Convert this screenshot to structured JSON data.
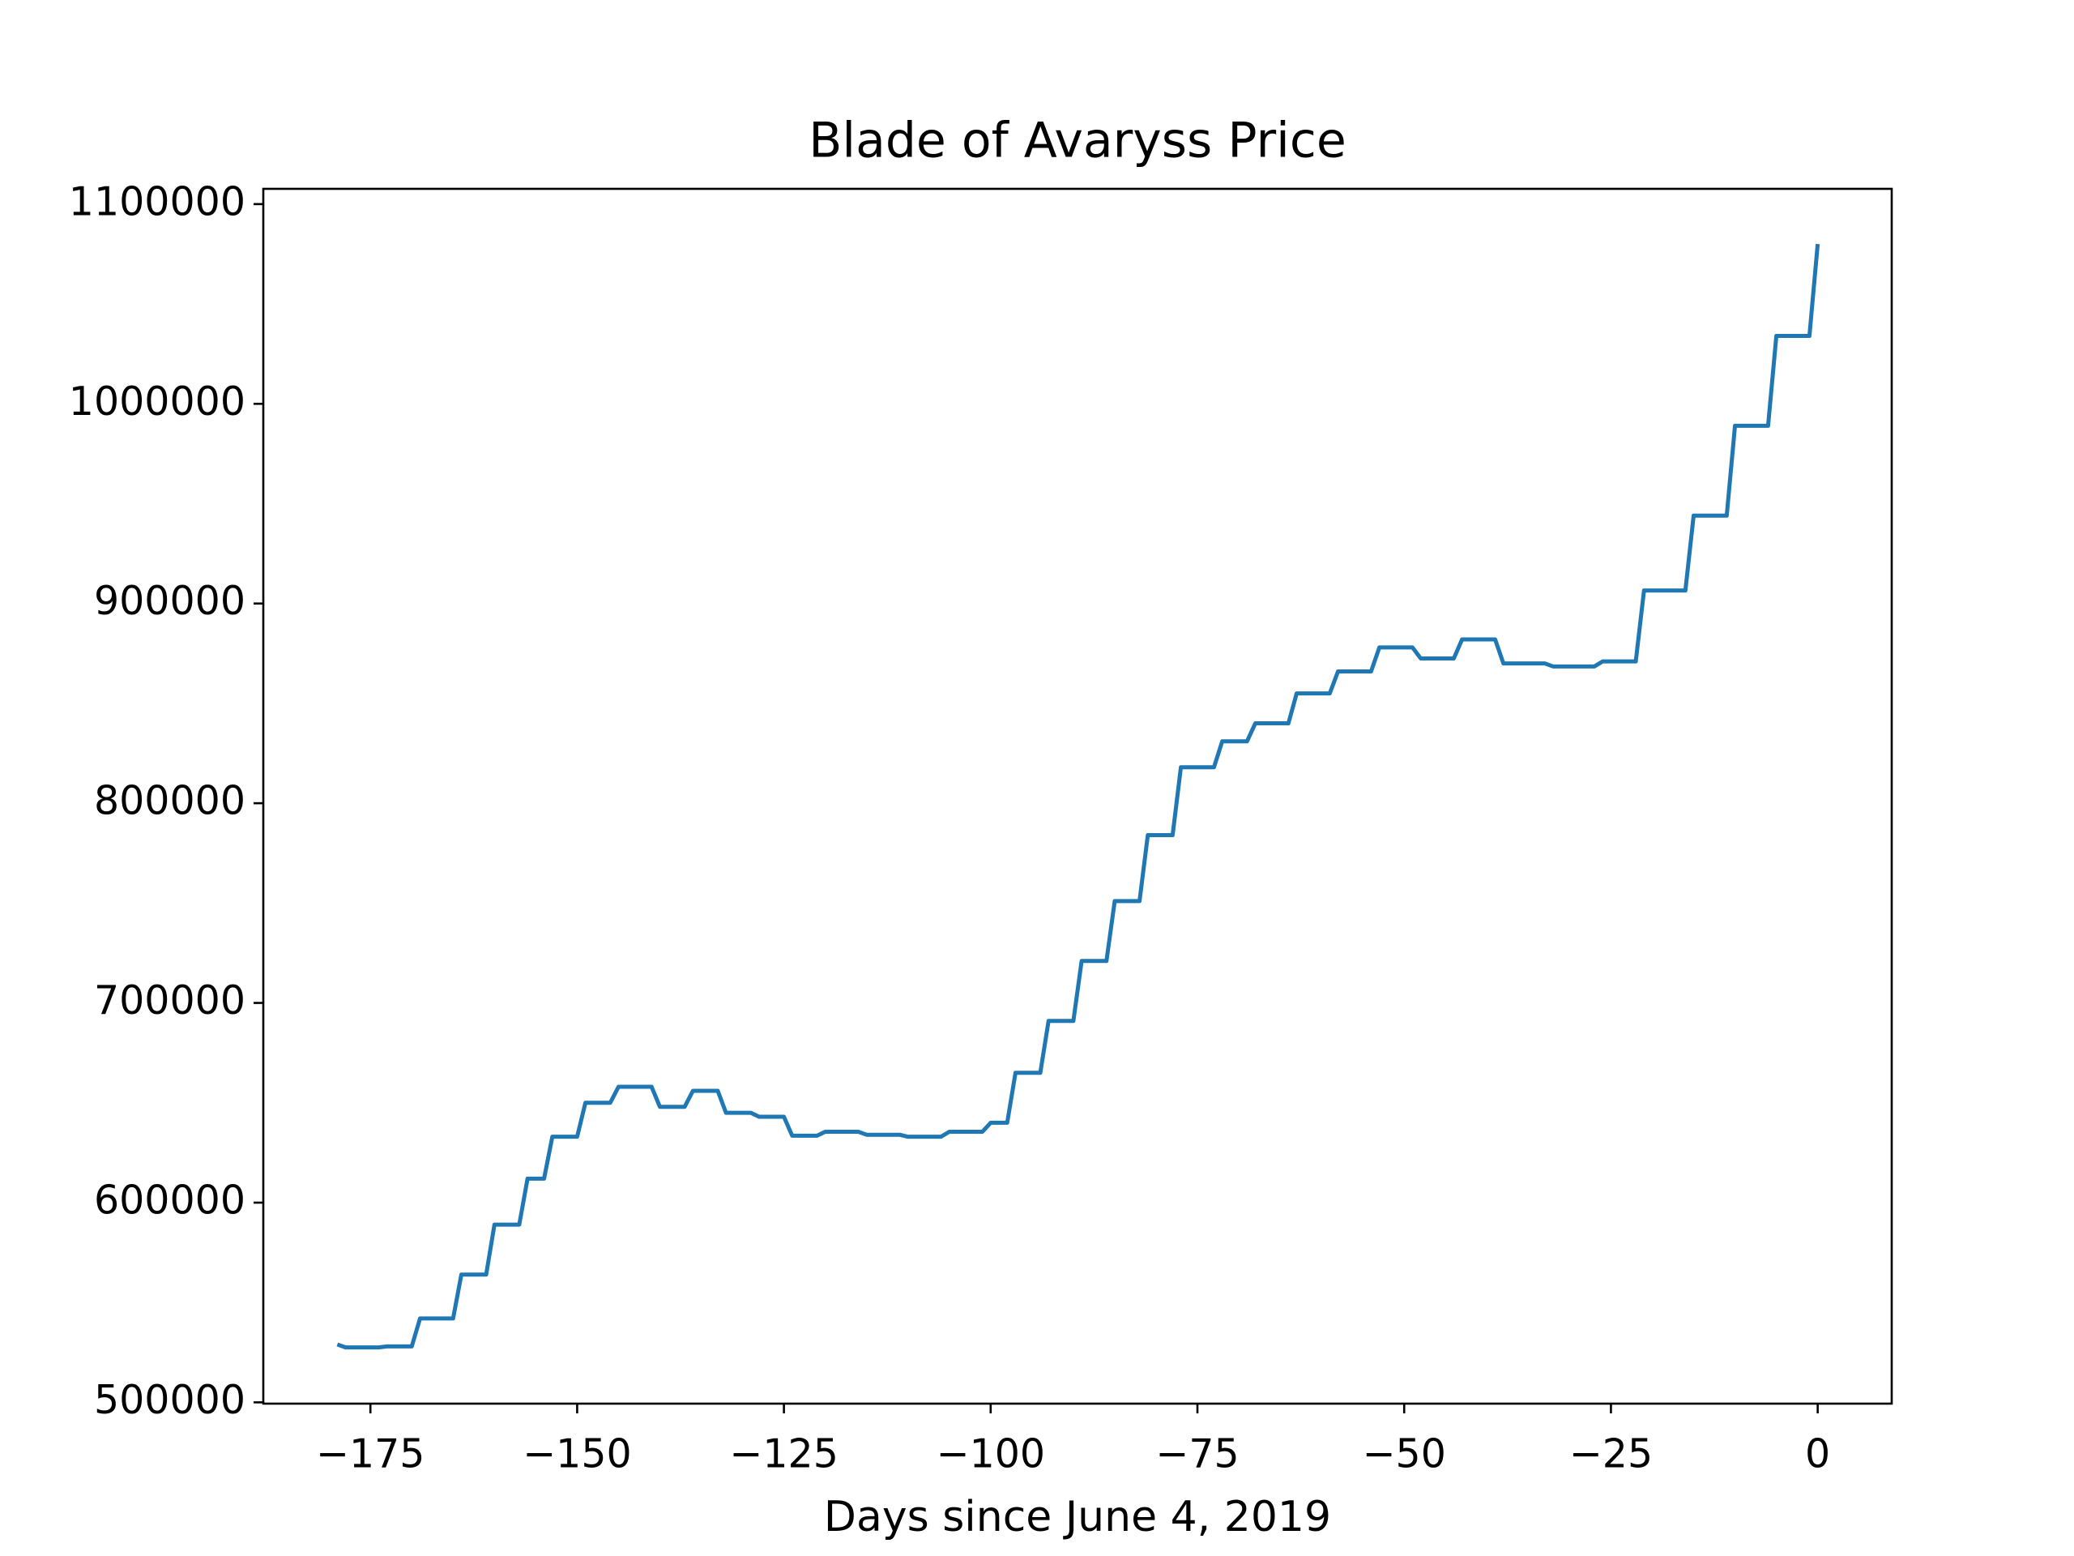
{
  "chart_data": {
    "type": "line",
    "title": "Blade of Avaryss Price",
    "x_label": "Days since June 4, 2019",
    "series": [
      {
        "color": "#1f77b4",
        "x": [
          -179,
          -178,
          -174,
          -173,
          -170,
          -169,
          -165,
          -164,
          -161,
          -160,
          -157,
          -156,
          -154,
          -153,
          -150,
          -149,
          -146,
          -145,
          -141,
          -140,
          -137,
          -136,
          -133,
          -132,
          -129,
          -128,
          -125,
          -124,
          -121,
          -120,
          -116,
          -115,
          -111,
          -110,
          -106,
          -105,
          -101,
          -100,
          -98,
          -97,
          -94,
          -93,
          -90,
          -89,
          -86,
          -85,
          -82,
          -81,
          -78,
          -77,
          -73,
          -72,
          -69,
          -68,
          -64,
          -63,
          -59,
          -58,
          -54,
          -53,
          -49,
          -48,
          -44,
          -43,
          -39,
          -38,
          -33,
          -32,
          -27,
          -26,
          -22,
          -21,
          -16,
          -15,
          -11,
          -10,
          -6,
          -5,
          -1,
          0
        ],
        "values": [
          529000,
          527500,
          527500,
          528000,
          528000,
          542000,
          542000,
          564000,
          564000,
          589000,
          589000,
          612000,
          612000,
          633000,
          633000,
          650000,
          650000,
          658000,
          658000,
          648000,
          648000,
          656000,
          656000,
          645000,
          645000,
          643000,
          643000,
          633500,
          633500,
          635500,
          635500,
          634000,
          634000,
          633000,
          633000,
          635500,
          635500,
          640000,
          640000,
          665000,
          665000,
          691000,
          691000,
          721000,
          721000,
          751000,
          751000,
          784000,
          784000,
          818000,
          818000,
          831000,
          831000,
          840000,
          840000,
          855000,
          855000,
          866000,
          866000,
          878000,
          878000,
          872500,
          872500,
          882000,
          882000,
          870000,
          870000,
          868500,
          868500,
          871000,
          871000,
          906500,
          906500,
          944000,
          944000,
          989000,
          989000,
          1034000,
          1034000,
          1080000
        ]
      }
    ],
    "xlim": [
      -187.95,
      8.95
    ],
    "ylim": [
      499350,
      1107650
    ],
    "xticks": [
      {
        "value": -175,
        "label": "−175"
      },
      {
        "value": -150,
        "label": "−150"
      },
      {
        "value": -125,
        "label": "−125"
      },
      {
        "value": -100,
        "label": "−100"
      },
      {
        "value": -75,
        "label": "−75"
      },
      {
        "value": -50,
        "label": "−50"
      },
      {
        "value": -25,
        "label": "−25"
      },
      0
    ],
    "yticks": [
      500000,
      600000,
      700000,
      800000,
      900000,
      1000000,
      1100000
    ]
  }
}
